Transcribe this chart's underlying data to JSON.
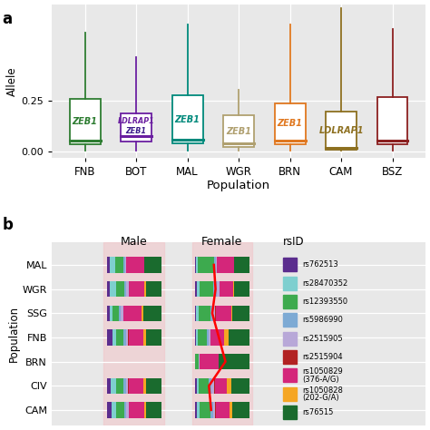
{
  "panel_a": {
    "populations": [
      "FNB",
      "BOT",
      "MAL",
      "WGR",
      "BRN",
      "CAM",
      "BSZ"
    ],
    "box_colors": [
      "#2e7d32",
      "#6a1fa0",
      "#00897b",
      "#b0a070",
      "#e07820",
      "#8d7020",
      "#8b2020"
    ],
    "whisker_top": [
      0.58,
      0.46,
      0.62,
      0.3,
      0.62,
      0.7,
      0.6
    ],
    "q3": [
      0.255,
      0.185,
      0.275,
      0.175,
      0.235,
      0.195,
      0.265
    ],
    "median": [
      0.055,
      0.075,
      0.058,
      0.038,
      0.053,
      0.018,
      0.053
    ],
    "q1": [
      0.033,
      0.048,
      0.038,
      0.022,
      0.035,
      0.008,
      0.035
    ],
    "whisker_bot": [
      0.003,
      0.003,
      0.003,
      0.003,
      0.003,
      0.003,
      0.003
    ],
    "labels": [
      [
        "ZEB1"
      ],
      [
        "LDLRAP1",
        "ZEB1"
      ],
      [
        "ZEB1"
      ],
      [
        "ZEB1"
      ],
      [
        "ZEB1"
      ],
      [
        "LDLRAP1"
      ],
      []
    ],
    "label_colors": [
      [
        "#2e7d32"
      ],
      [
        "#6a1fa0",
        "#3a1a8a"
      ],
      [
        "#00897b"
      ],
      [
        "#b0a070"
      ],
      [
        "#e07820"
      ],
      [
        "#8d7020"
      ],
      []
    ],
    "ylabel": "Allele",
    "xlabel": "Population",
    "ylim": [
      -0.03,
      0.72
    ],
    "yticks": [
      0.0,
      0.25
    ],
    "bg_color": "#e8e8e8"
  },
  "panel_b": {
    "populations": [
      "MAL",
      "WGR",
      "SSG",
      "FNB",
      "BRN",
      "CIV",
      "CAM"
    ],
    "rsid_colors": [
      "#5b2d8e",
      "#7ecfcf",
      "#3daa4e",
      "#7daad4",
      "#b8a8d8",
      "#b22222",
      "#d4267a",
      "#f5a623",
      "#1a6b2e"
    ],
    "rsid_labels": [
      "rs762513",
      "rs28470352",
      "rs12393550",
      "rs5986990",
      "rs2515905",
      "rs2515904",
      "rs1050829\n(376-A/G)",
      "rs1050828\n(202-G/A)",
      "rs76515"
    ],
    "male_bars": {
      "MAL": [
        0.05,
        0.1,
        0.15,
        0.03,
        0.02,
        0.01,
        0.32,
        0.01,
        0.31
      ],
      "WGR": [
        0.06,
        0.12,
        0.14,
        0.04,
        0.04,
        0.01,
        0.28,
        0.03,
        0.28
      ],
      "SSG": [
        0.05,
        0.06,
        0.12,
        0.03,
        0.04,
        0.01,
        0.32,
        0.03,
        0.34
      ],
      "FNB": [
        0.1,
        0.08,
        0.13,
        0.04,
        0.04,
        0.01,
        0.26,
        0.05,
        0.29
      ],
      "BRN": [
        0.0,
        0.0,
        0.0,
        0.0,
        0.0,
        0.0,
        0.0,
        0.0,
        0.0
      ],
      "CIV": [
        0.08,
        0.1,
        0.13,
        0.04,
        0.04,
        0.01,
        0.26,
        0.05,
        0.29
      ],
      "CAM": [
        0.09,
        0.09,
        0.14,
        0.04,
        0.04,
        0.01,
        0.27,
        0.04,
        0.28
      ]
    },
    "female_bars": {
      "MAL": [
        0.03,
        0.02,
        0.3,
        0.03,
        0.02,
        0.01,
        0.3,
        0.01,
        0.28
      ],
      "WGR": [
        0.04,
        0.05,
        0.25,
        0.06,
        0.05,
        0.01,
        0.24,
        0.02,
        0.28
      ],
      "SSG": [
        0.03,
        0.04,
        0.22,
        0.04,
        0.04,
        0.01,
        0.28,
        0.03,
        0.31
      ],
      "FNB": [
        0.02,
        0.04,
        0.16,
        0.03,
        0.03,
        0.01,
        0.24,
        0.08,
        0.39
      ],
      "BRN": [
        0.0,
        0.01,
        0.06,
        0.01,
        0.01,
        0.0,
        0.35,
        0.0,
        0.56
      ],
      "CIV": [
        0.04,
        0.04,
        0.18,
        0.05,
        0.05,
        0.01,
        0.22,
        0.08,
        0.33
      ],
      "CAM": [
        0.04,
        0.05,
        0.2,
        0.04,
        0.04,
        0.01,
        0.26,
        0.04,
        0.32
      ]
    },
    "red_line_female_x_fracs": [
      0.35,
      0.38,
      0.32,
      0.44,
      0.56,
      0.26,
      0.3
    ],
    "bg_color": "#e8e8e8",
    "highlight_color": "#f2c4c8"
  }
}
